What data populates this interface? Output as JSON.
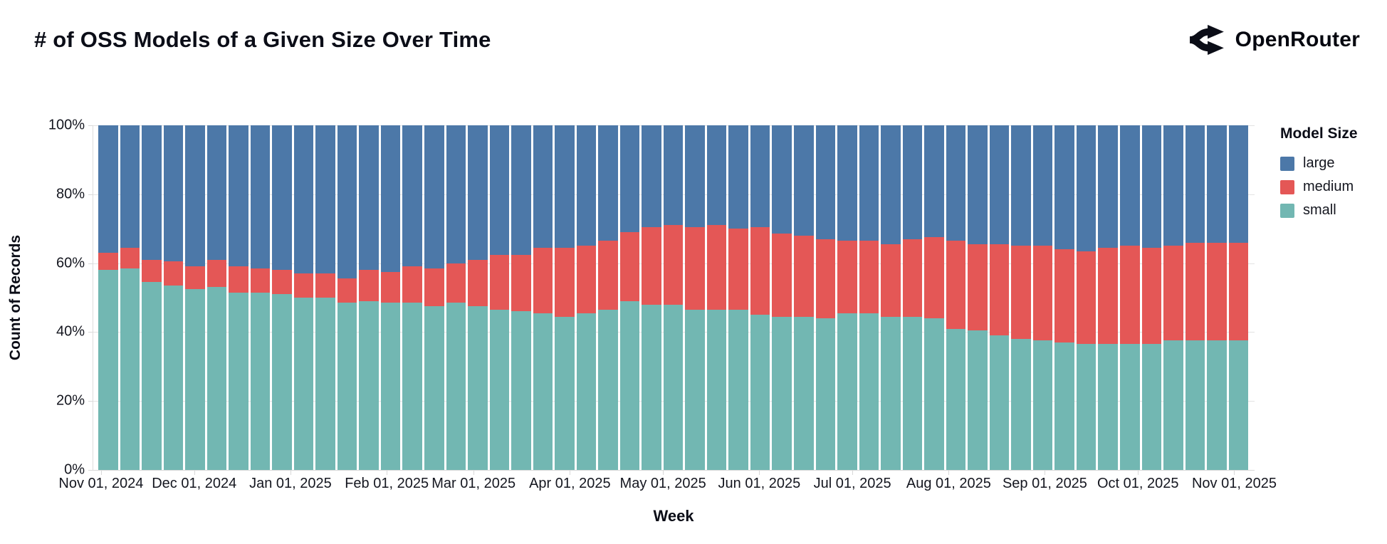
{
  "page": {
    "brand": "OpenRouter"
  },
  "chart_data": {
    "type": "bar",
    "variant": "stacked-100-percent",
    "title": "# of OSS Models of a Given Size Over Time",
    "xlabel": "Week",
    "ylabel": "Count of Records",
    "weeks": 53,
    "grid": true,
    "y_axis": {
      "range": [
        0,
        100
      ],
      "unit": "%",
      "tick_labels": [
        "0%",
        "20%",
        "40%",
        "60%",
        "80%",
        "100%"
      ],
      "tick_values": [
        0,
        20,
        40,
        60,
        80,
        100
      ]
    },
    "x_axis": {
      "tick_labels": [
        "Nov 01, 2024",
        "Dec 01, 2024",
        "Jan 01, 2025",
        "Feb 01, 2025",
        "Mar 01, 2025",
        "Apr 01, 2025",
        "May 01, 2025",
        "Jun 01, 2025",
        "Jul 01, 2025",
        "Aug 01, 2025",
        "Sep 01, 2025",
        "Oct 01, 2025",
        "Nov 01, 2025"
      ],
      "tick_positions_pct": [
        0.67,
        8.69,
        16.98,
        25.27,
        32.75,
        41.04,
        49.06,
        57.35,
        65.37,
        73.66,
        81.94,
        89.96,
        98.25
      ]
    },
    "legend": {
      "title": "Model Size",
      "position": "right",
      "entries": [
        {
          "label": "large",
          "color": "#4c78a8"
        },
        {
          "label": "medium",
          "color": "#e45756"
        },
        {
          "label": "small",
          "color": "#72b7b2"
        }
      ]
    },
    "stack_order_top_to_bottom": [
      "large",
      "medium",
      "small"
    ],
    "series": [
      {
        "name": "large",
        "color": "#4c78a8",
        "values": [
          37,
          35.5,
          39,
          39.5,
          41,
          39,
          41,
          41.5,
          42,
          43,
          43,
          44.5,
          42,
          42.5,
          41,
          41.5,
          40,
          39,
          37.5,
          37.5,
          35.5,
          35.5,
          35,
          33.5,
          31,
          29.5,
          29,
          29.5,
          29,
          30,
          29.5,
          31.5,
          32,
          33,
          33.5,
          33.5,
          34.5,
          33,
          32.5,
          33.5,
          34.5,
          34.5,
          35,
          35,
          36,
          36.5,
          35.5,
          35,
          35.5,
          35,
          34,
          34,
          34
        ]
      },
      {
        "name": "medium",
        "color": "#e45756",
        "values": [
          5,
          6,
          6.5,
          7,
          6.5,
          8,
          7.5,
          7,
          7,
          7,
          7,
          7,
          9,
          9,
          10.5,
          11,
          11.5,
          13.5,
          16,
          16.5,
          19,
          20,
          19.5,
          20,
          20,
          22.5,
          23,
          24,
          24.5,
          23.5,
          25.5,
          24,
          23.5,
          23,
          21,
          21,
          21,
          22.5,
          23.5,
          25.5,
          25,
          26.5,
          27,
          27.5,
          27,
          27,
          28,
          28.5,
          28,
          27.5,
          28.5,
          28.5,
          28.5
        ]
      },
      {
        "name": "small",
        "color": "#72b7b2",
        "values": [
          58,
          58.5,
          54.5,
          53.5,
          52.5,
          53,
          51.5,
          51.5,
          51,
          50,
          50,
          48.5,
          49,
          48.5,
          48.5,
          47.5,
          48.5,
          47.5,
          46.5,
          46,
          45.5,
          44.5,
          45.5,
          46.5,
          49,
          48,
          48,
          46.5,
          46.5,
          46.5,
          45,
          44.5,
          44.5,
          44,
          45.5,
          45.5,
          44.5,
          44.5,
          44,
          41,
          40.5,
          39,
          38,
          37.5,
          37,
          36.5,
          36.5,
          36.5,
          36.5,
          37.5,
          37.5,
          37.5,
          37.5
        ]
      }
    ]
  }
}
